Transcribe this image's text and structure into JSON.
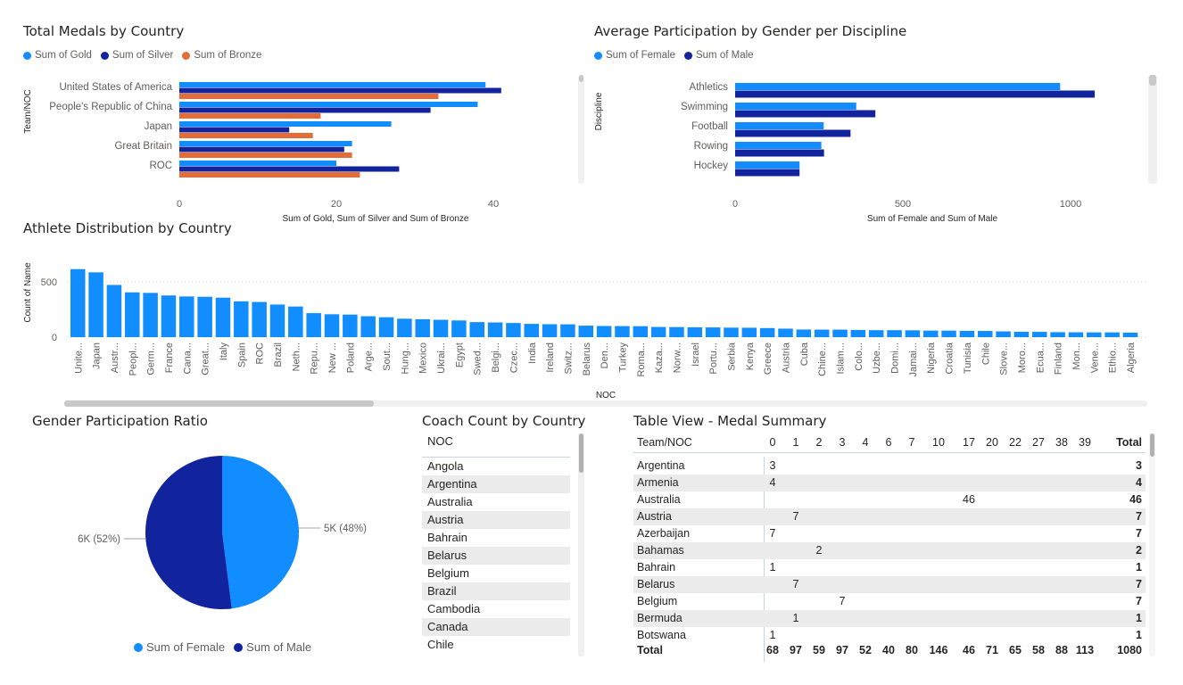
{
  "colors": {
    "gold": "#118dff",
    "silver": "#12239e",
    "bronze": "#e66c37",
    "female": "#118dff",
    "male": "#12239e",
    "athlete": "#118dff"
  },
  "medals": {
    "title": "Total Medals by Country",
    "legend": [
      "Sum of Gold",
      "Sum of Silver",
      "Sum of Bronze"
    ],
    "ylabel": "Team/NOC",
    "xlabel": "Sum of Gold, Sum of Silver and Sum of Bronze",
    "ticks": [
      "0",
      "20",
      "40"
    ]
  },
  "participation": {
    "title": "Average Participation by Gender per Discipline",
    "legend": [
      "Sum of Female",
      "Sum of Male"
    ],
    "ylabel": "Discipline",
    "xlabel": "Sum of Female and Sum of Male",
    "ticks": [
      "0",
      "500",
      "1000"
    ]
  },
  "athletes": {
    "title": "Athlete Distribution by Country",
    "ylabel": "Count of Name",
    "xlabel": "NOC",
    "ticks": [
      "0",
      "500"
    ]
  },
  "gender_ratio": {
    "title": "Gender Participation Ratio",
    "legend": [
      "Sum of Female",
      "Sum of Male"
    ],
    "male_label": "6K (52%)",
    "female_label": "5K (48%)"
  },
  "coach": {
    "title": "Coach Count by Country",
    "header": "NOC",
    "items": [
      "Angola",
      "Argentina",
      "Australia",
      "Austria",
      "Bahrain",
      "Belarus",
      "Belgium",
      "Brazil",
      "Cambodia",
      "Canada",
      "Chile"
    ]
  },
  "medal_table": {
    "title": "Table View - Medal Summary",
    "header_name": "Team/NOC",
    "columns": [
      "0",
      "1",
      "2",
      "3",
      "4",
      "6",
      "7",
      "10",
      "17",
      "20",
      "22",
      "27",
      "38",
      "39"
    ],
    "total_label": "Total",
    "rows": [
      {
        "name": "Argentina",
        "col": 0,
        "value": "3",
        "total": "3"
      },
      {
        "name": "Armenia",
        "col": 0,
        "value": "4",
        "total": "4"
      },
      {
        "name": "Australia",
        "col": 8,
        "value": "46",
        "total": "46"
      },
      {
        "name": "Austria",
        "col": 1,
        "value": "7",
        "total": "7"
      },
      {
        "name": "Azerbaijan",
        "col": 0,
        "value": "7",
        "total": "7"
      },
      {
        "name": "Bahamas",
        "col": 2,
        "value": "2",
        "total": "2"
      },
      {
        "name": "Bahrain",
        "col": 0,
        "value": "1",
        "total": "1"
      },
      {
        "name": "Belarus",
        "col": 1,
        "value": "7",
        "total": "7"
      },
      {
        "name": "Belgium",
        "col": 3,
        "value": "7",
        "total": "7"
      },
      {
        "name": "Bermuda",
        "col": 1,
        "value": "1",
        "total": "1"
      },
      {
        "name": "Botswana",
        "col": 0,
        "value": "1",
        "total": "1"
      }
    ],
    "totals": [
      "68",
      "97",
      "59",
      "97",
      "52",
      "40",
      "80",
      "146",
      "46",
      "71",
      "65",
      "58",
      "88",
      "113"
    ],
    "grand_total": "1080"
  },
  "chart_data": [
    {
      "type": "bar",
      "orientation": "horizontal",
      "title": "Total Medals by Country",
      "xlabel": "Sum of Gold, Sum of Silver and Sum of Bronze",
      "ylabel": "Team/NOC",
      "categories": [
        "United States of America",
        "People's Republic of China",
        "Japan",
        "Great Britain",
        "ROC"
      ],
      "series": [
        {
          "name": "Sum of Gold",
          "values": [
            39,
            38,
            27,
            22,
            20
          ]
        },
        {
          "name": "Sum of Silver",
          "values": [
            41,
            32,
            14,
            21,
            28
          ]
        },
        {
          "name": "Sum of Bronze",
          "values": [
            33,
            18,
            17,
            22,
            23
          ]
        }
      ],
      "xlim": [
        0,
        50
      ],
      "legend": "top-left"
    },
    {
      "type": "bar",
      "orientation": "horizontal",
      "title": "Average Participation by Gender per Discipline",
      "xlabel": "Sum of Female and Sum of Male",
      "ylabel": "Discipline",
      "categories": [
        "Athletics",
        "Swimming",
        "Football",
        "Rowing",
        "Hockey"
      ],
      "series": [
        {
          "name": "Sum of Female",
          "values": [
            969,
            361,
            264,
            257,
            192
          ]
        },
        {
          "name": "Sum of Male",
          "values": [
            1072,
            418,
            344,
            265,
            192
          ]
        }
      ],
      "xlim": [
        0,
        1250
      ],
      "legend": "top-left"
    },
    {
      "type": "bar",
      "title": "Athlete Distribution by Country",
      "xlabel": "NOC",
      "ylabel": "Count of Name",
      "categories": [
        "Unite...",
        "Japan",
        "Austr...",
        "Peopl...",
        "Germ...",
        "France",
        "Cana...",
        "Great...",
        "Italy",
        "Spain",
        "ROC",
        "Brazil",
        "Neth...",
        "Repu...",
        "New ...",
        "Poland",
        "Arge...",
        "Sout...",
        "Hung...",
        "Mexico",
        "Ukrai...",
        "Egypt",
        "Swed...",
        "Belgi...",
        "Czec...",
        "India",
        "Ireland",
        "Switz...",
        "Belarus",
        "Den...",
        "Turkey",
        "Roma...",
        "Kaza...",
        "Norw...",
        "Israel",
        "Portu...",
        "Serbia",
        "Kenya",
        "Greece",
        "Austria",
        "Cuba",
        "Chine...",
        "Islam...",
        "Colo...",
        "Uzbe...",
        "Domi...",
        "Jamai...",
        "Nigeria",
        "Croatia",
        "Tunisia",
        "Chile",
        "Slove...",
        "Moro...",
        "Ecua...",
        "Finland",
        "Mon...",
        "Vene...",
        "Ethio...",
        "Algeria"
      ],
      "values": [
        615,
        586,
        472,
        405,
        400,
        377,
        368,
        365,
        357,
        324,
        318,
        295,
        277,
        217,
        207,
        204,
        189,
        180,
        167,
        162,
        157,
        151,
        136,
        133,
        128,
        120,
        117,
        116,
        104,
        101,
        100,
        99,
        92,
        91,
        89,
        88,
        86,
        85,
        82,
        77,
        69,
        68,
        68,
        65,
        63,
        63,
        62,
        59,
        59,
        57,
        56,
        52,
        49,
        48,
        45,
        44,
        43,
        43,
        41
      ],
      "ylim": [
        0,
        700
      ],
      "grid": true
    },
    {
      "type": "pie",
      "title": "Gender Participation Ratio",
      "labels": [
        "Sum of Female",
        "Sum of Male"
      ],
      "values": [
        48,
        52
      ],
      "legend": "bottom"
    }
  ]
}
